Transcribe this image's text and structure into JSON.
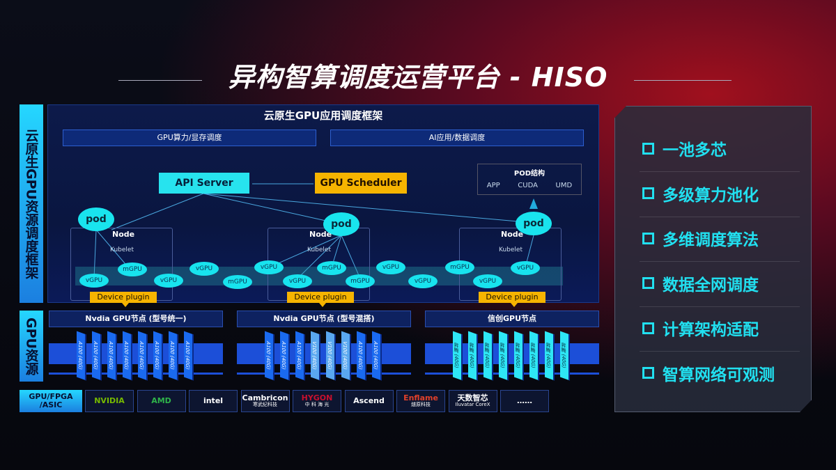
{
  "title": "异构智算调度运营平台 - HISO",
  "left_labels": {
    "scheduling": "云原生GPU资源调度框架",
    "resources": "GPU资源",
    "chips": "GPU/FPGA /ASIC"
  },
  "framework": {
    "title": "云原生GPU应用调度框架",
    "bars": [
      "GPU算力/显存调度",
      "AI应用/数据调度"
    ]
  },
  "api_server": "API Server",
  "gpu_scheduler": "GPU Scheduler",
  "pod_structure": {
    "title": "POD结构",
    "items": [
      "APP",
      "CUDA",
      "UMD"
    ]
  },
  "pod_label": "pod",
  "node_label": "Node",
  "kubelet_label": "Kubelet",
  "device_plugin_label": "Device plugin",
  "virtual_gpus": [
    "vGPU",
    "mGPU",
    "vGPU",
    "vGPU",
    "mGPU",
    "vGPU",
    "vGPU",
    "mGPU",
    "mGPU",
    "vGPU",
    "vGPU",
    "mGPU",
    "vGPU",
    "vGPU"
  ],
  "gpu_nodes": [
    {
      "title": "Nvdia GPU节点 (型号统一)",
      "cards": [
        "A100 (40G)",
        "A100 (40G)",
        "A100 (40G)",
        "A100 (40G)",
        "A100 (40G)",
        "A100 (40G)",
        "A100 (40G)",
        "A100 (40G)"
      ]
    },
    {
      "title": "Nvdia GPU节点 (型号混搭)",
      "cards": [
        "A100 (40G)",
        "A100 (40G)",
        "A100 (40G)",
        "V100 (40G)",
        "V100 (40G)",
        "V100 (40G)",
        "A100 (40G)",
        "A100 (40G)"
      ]
    },
    {
      "title": "信创GPU节点",
      "cards": [
        "昇腾 (40G)",
        "昇腾 (40G)",
        "昇腾 (40G)",
        "昇腾 (40G)",
        "昇腾 (40G)",
        "昇腾 (40G)",
        "昇腾 (40G)",
        "昇腾 (40G)"
      ]
    }
  ],
  "vendors": [
    {
      "name": "NVIDIA",
      "sub": "",
      "color": "#76b900"
    },
    {
      "name": "AMD",
      "sub": "",
      "color": "#2fb34a"
    },
    {
      "name": "intel",
      "sub": "",
      "color": "#ffffff"
    },
    {
      "name": "Cambricon",
      "sub": "寒武纪科技",
      "color": "#ffffff"
    },
    {
      "name": "HYGON",
      "sub": "中 科 海 光",
      "color": "#c8102e"
    },
    {
      "name": "Ascend",
      "sub": "",
      "color": "#ffffff"
    },
    {
      "name": "Enflame",
      "sub": "燧原科技",
      "color": "#e0402a"
    },
    {
      "name": "天数智芯",
      "sub": "Iluvatar CoreX",
      "color": "#ffffff"
    },
    {
      "name": "……",
      "sub": "",
      "color": "#ffffff"
    }
  ],
  "features": [
    "一池多芯",
    "多级算力池化",
    "多维调度算法",
    "数据全网调度",
    "计算架构适配",
    "智算网络可观测"
  ],
  "colors": {
    "cyan": "#21e0f0",
    "yellow": "#f6b400",
    "blue": "#1c4fd8"
  }
}
